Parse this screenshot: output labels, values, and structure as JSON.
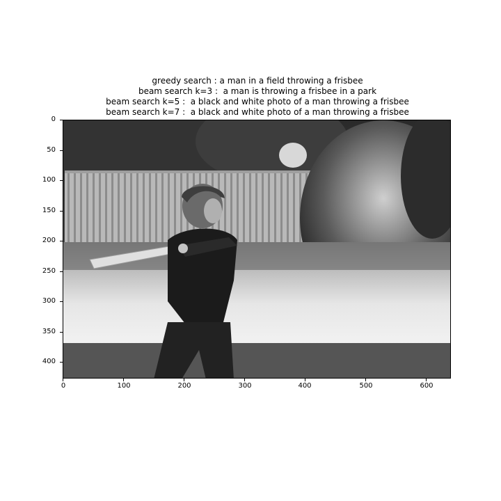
{
  "figure": {
    "title_lines": [
      "greedy search : a man in a field throwing a frisbee",
      "beam search k=3 :  a man is throwing a frisbee in a park",
      "beam search k=5 :  a black and white photo of a man throwing a frisbee",
      "beam search k=7 :  a black and white photo of a man throwing a frisbee"
    ],
    "y_ticks": [
      "0",
      "50",
      "100",
      "150",
      "200",
      "250",
      "300",
      "350",
      "400"
    ],
    "x_ticks": [
      "0",
      "100",
      "200",
      "300",
      "400",
      "500",
      "600"
    ],
    "image": {
      "description_icon": "photo-boy-swinging-bat",
      "palette": [
        "#1a1a1a",
        "#3a3a3a",
        "#6e6e6e",
        "#b5b5b5",
        "#e8e8e8"
      ]
    }
  }
}
